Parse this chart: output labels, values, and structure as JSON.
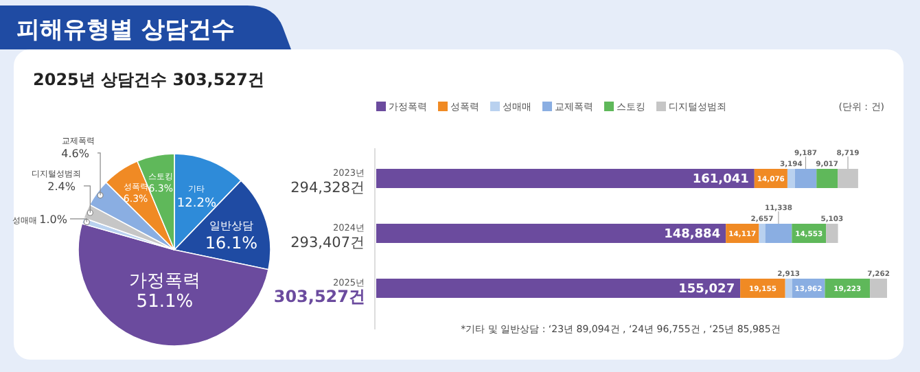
{
  "chart_data": [
    {
      "type": "pie",
      "title": "피해유형별 상담건수",
      "subtitle": "2025년 상담건수 303,527건",
      "categories": [
        "기타",
        "일반상담",
        "가정폭력",
        "성매매",
        "디지털성범죄",
        "교제폭력",
        "성폭력",
        "스토킹"
      ],
      "values": [
        12.2,
        16.1,
        51.1,
        1.0,
        2.4,
        4.6,
        6.3,
        6.3
      ],
      "value_labels": [
        "12.2%",
        "16.1%",
        "51.1%",
        "1.0%",
        "2.4%",
        "4.6%",
        "6.3%",
        "6.3%"
      ],
      "colors": [
        "#2e8bd9",
        "#1f4ba3",
        "#6b4b9e",
        "#b9d1ef",
        "#c6c6c6",
        "#8aaee2",
        "#f08a24",
        "#5fb85a"
      ]
    },
    {
      "type": "bar",
      "orientation": "horizontal",
      "stacked": true,
      "legend": "top",
      "categories": [
        "2023년",
        "2024년",
        "2025년"
      ],
      "series": [
        {
          "name": "가정폭력",
          "color": "#6b4b9e",
          "values": [
            161041,
            148884,
            155027
          ],
          "value_labels": [
            "161,041",
            "148,884",
            "155,027"
          ]
        },
        {
          "name": "성폭력",
          "color": "#f08a24",
          "values": [
            14076,
            14117,
            19155
          ],
          "value_labels": [
            "14,076",
            "14,117",
            "19,155"
          ]
        },
        {
          "name": "성매매",
          "color": "#b9d1ef",
          "values": [
            3194,
            2657,
            2913
          ],
          "value_labels": [
            "3,194",
            "2,657",
            "2,913"
          ]
        },
        {
          "name": "교제폭력",
          "color": "#8aaee2",
          "values": [
            9187,
            11338,
            13962
          ],
          "value_labels": [
            "9,187",
            "11,338",
            "13,962"
          ]
        },
        {
          "name": "스토킹",
          "color": "#5fb85a",
          "values": [
            9017,
            14553,
            19223
          ],
          "value_labels": [
            "9,017",
            "14,553",
            "19,223"
          ]
        },
        {
          "name": "디지털성범죄",
          "color": "#c6c6c6",
          "values": [
            8719,
            5103,
            7262
          ],
          "value_labels": [
            "8,719",
            "5,103",
            "7,262"
          ]
        }
      ],
      "annotations": [
        "294,328건",
        "293,407건",
        "303,527건",
        "(단위 : 건)",
        "*기타 및 일반상담 : ‘23년 89,094건 , ‘24년 96,755건 , ‘25년 85,985건"
      ]
    }
  ]
}
